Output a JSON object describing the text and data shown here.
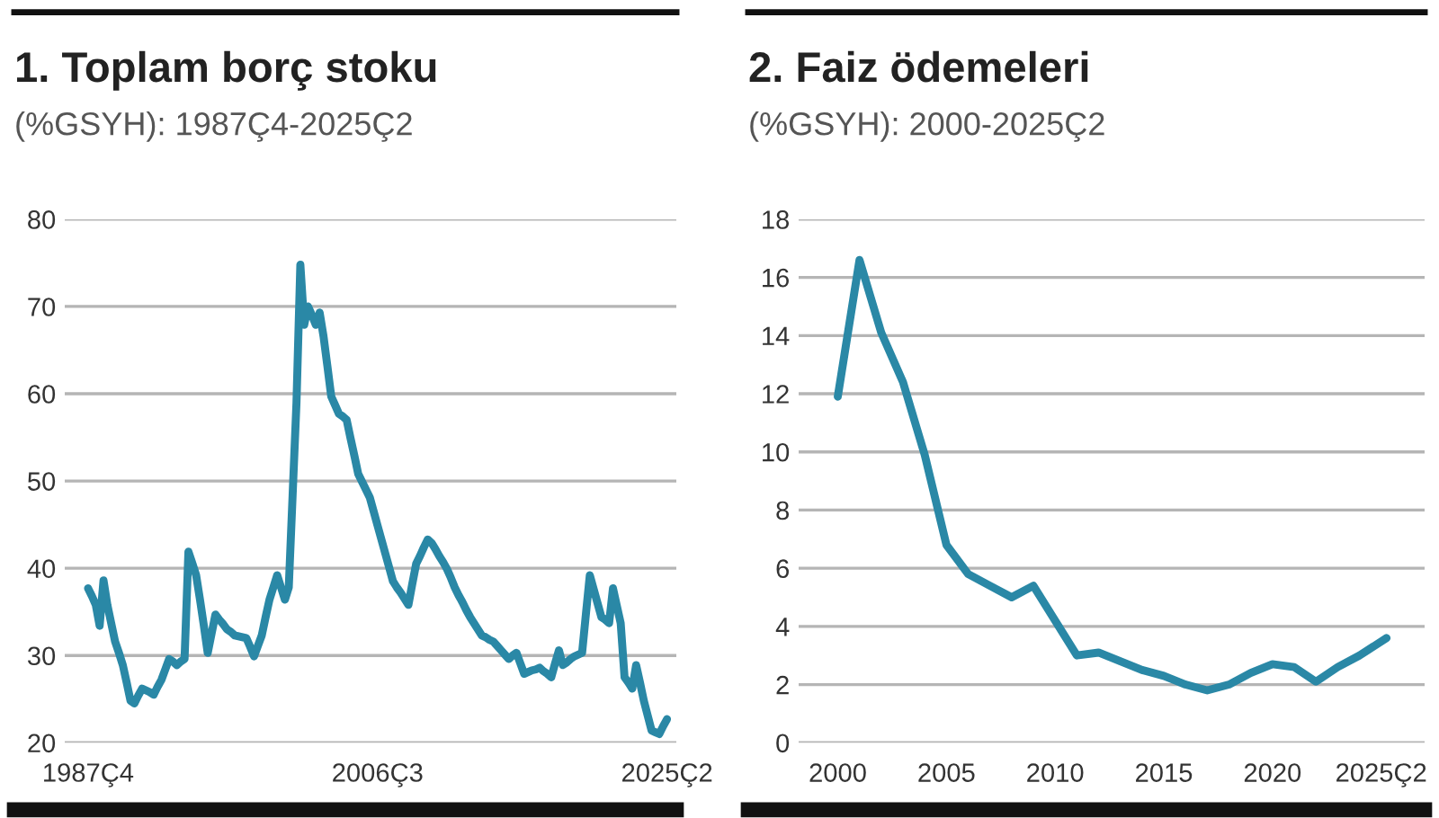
{
  "chart_data": [
    {
      "type": "line",
      "title": "1. Toplam borç stoku",
      "subtitle": "(%GSYH): 1987Ç4-2025Ç2",
      "categories": [
        "1987Ç4",
        null,
        null,
        null,
        null,
        null,
        null,
        null,
        null,
        null,
        null,
        null,
        null,
        null,
        null,
        null,
        null,
        null,
        null,
        null,
        null,
        null,
        null,
        null,
        null,
        null,
        null,
        null,
        null,
        null,
        null,
        null,
        null,
        null,
        null,
        null,
        null,
        null,
        null,
        null,
        null,
        null,
        null,
        null,
        null,
        null,
        null,
        null,
        null,
        null,
        null,
        null,
        null,
        null,
        null,
        null,
        null,
        null,
        null,
        null,
        null,
        null,
        null,
        null,
        null,
        null,
        null,
        null,
        null,
        null,
        null,
        null,
        null,
        null,
        null,
        "2006Ç3",
        null,
        null,
        null,
        null,
        null,
        null,
        null,
        null,
        null,
        null,
        null,
        null,
        null,
        null,
        null,
        null,
        null,
        null,
        null,
        null,
        null,
        null,
        null,
        null,
        null,
        null,
        null,
        null,
        null,
        null,
        null,
        null,
        null,
        null,
        null,
        null,
        null,
        null,
        null,
        null,
        null,
        null,
        null,
        null,
        null,
        null,
        null,
        null,
        null,
        null,
        null,
        null,
        null,
        null,
        null,
        null,
        null,
        null,
        null,
        null,
        null,
        null,
        null,
        null,
        null,
        null,
        null,
        null,
        null,
        null,
        null,
        null,
        null,
        null,
        "2025Ç2"
      ],
      "series": [
        {
          "color": "#2a88a6",
          "values": [
            37.7,
            36.8,
            35.8,
            33.4,
            38.6,
            35.8,
            33.7,
            31.6,
            30.3,
            28.9,
            26.9,
            24.8,
            24.5,
            25.4,
            26.2,
            26.0,
            25.8,
            25.5,
            26.4,
            27.2,
            28.4,
            29.6,
            29.3,
            28.9,
            29.3,
            29.6,
            41.9,
            40.6,
            39.2,
            36.4,
            33.4,
            30.3,
            32.5,
            34.7,
            34.1,
            33.6,
            33.0,
            32.7,
            32.3,
            32.2,
            32.1,
            32.0,
            31.0,
            29.9,
            31.1,
            32.3,
            34.4,
            36.4,
            37.8,
            39.2,
            37.8,
            36.4,
            37.8,
            48.4,
            59.0,
            74.8,
            67.9,
            70.0,
            69.0,
            67.9,
            69.3,
            66.6,
            63.2,
            59.7,
            58.7,
            57.7,
            57.4,
            57.0,
            54.9,
            52.9,
            50.8,
            49.9,
            49.0,
            48.1,
            46.5,
            44.9,
            43.3,
            41.7,
            40.1,
            38.5,
            37.8,
            37.2,
            36.5,
            35.8,
            38.2,
            40.5,
            41.4,
            42.4,
            43.3,
            42.9,
            42.2,
            41.4,
            40.7,
            39.9,
            38.9,
            37.8,
            36.9,
            36.1,
            35.2,
            34.4,
            33.7,
            33.0,
            32.3,
            32.1,
            31.8,
            31.6,
            31.1,
            30.6,
            30.1,
            29.6,
            30.0,
            30.3,
            29.1,
            27.9,
            28.1,
            28.3,
            28.4,
            28.6,
            28.2,
            27.9,
            27.5,
            29.1,
            30.6,
            28.9,
            29.2,
            29.6,
            29.9,
            30.1,
            30.3,
            34.8,
            39.2,
            37.6,
            36.0,
            34.4,
            34.1,
            33.7,
            37.7,
            35.7,
            33.7,
            27.5,
            26.9,
            26.2,
            28.9,
            26.9,
            24.8,
            23.1,
            21.4,
            21.2,
            21.0,
            21.9,
            22.7
          ]
        }
      ],
      "ylim": [
        20,
        80
      ],
      "yticks": [
        20,
        30,
        40,
        50,
        60,
        70,
        80
      ],
      "grid": "y"
    },
    {
      "type": "line",
      "title": "2. Faiz ödemeleri",
      "subtitle": "(%GSYH): 2000-2025Ç2",
      "x": [
        2000,
        2001,
        2002,
        2003,
        2004,
        2005,
        2006,
        2007,
        2008,
        2009,
        2010,
        2011,
        2012,
        2013,
        2014,
        2015,
        2016,
        2017,
        2018,
        2019,
        2020,
        2021,
        2022,
        2023,
        2024,
        2025.25
      ],
      "series": [
        {
          "color": "#2a88a6",
          "values": [
            11.9,
            16.6,
            14.1,
            12.4,
            9.9,
            6.8,
            5.8,
            5.4,
            5.0,
            5.4,
            4.2,
            3.0,
            3.1,
            2.8,
            2.5,
            2.3,
            2.0,
            1.8,
            2.0,
            2.4,
            2.7,
            2.6,
            2.1,
            2.6,
            3.0,
            3.6
          ]
        }
      ],
      "xlim": [
        1998.2,
        2027.0
      ],
      "xticks": [
        2000,
        2005,
        2010,
        2015,
        2020,
        {
          "value": 2025,
          "label": "2025Ç2"
        }
      ],
      "ylim": [
        0,
        18
      ],
      "yticks": [
        0,
        2,
        4,
        6,
        8,
        10,
        12,
        14,
        16,
        18
      ],
      "grid": "y"
    }
  ]
}
